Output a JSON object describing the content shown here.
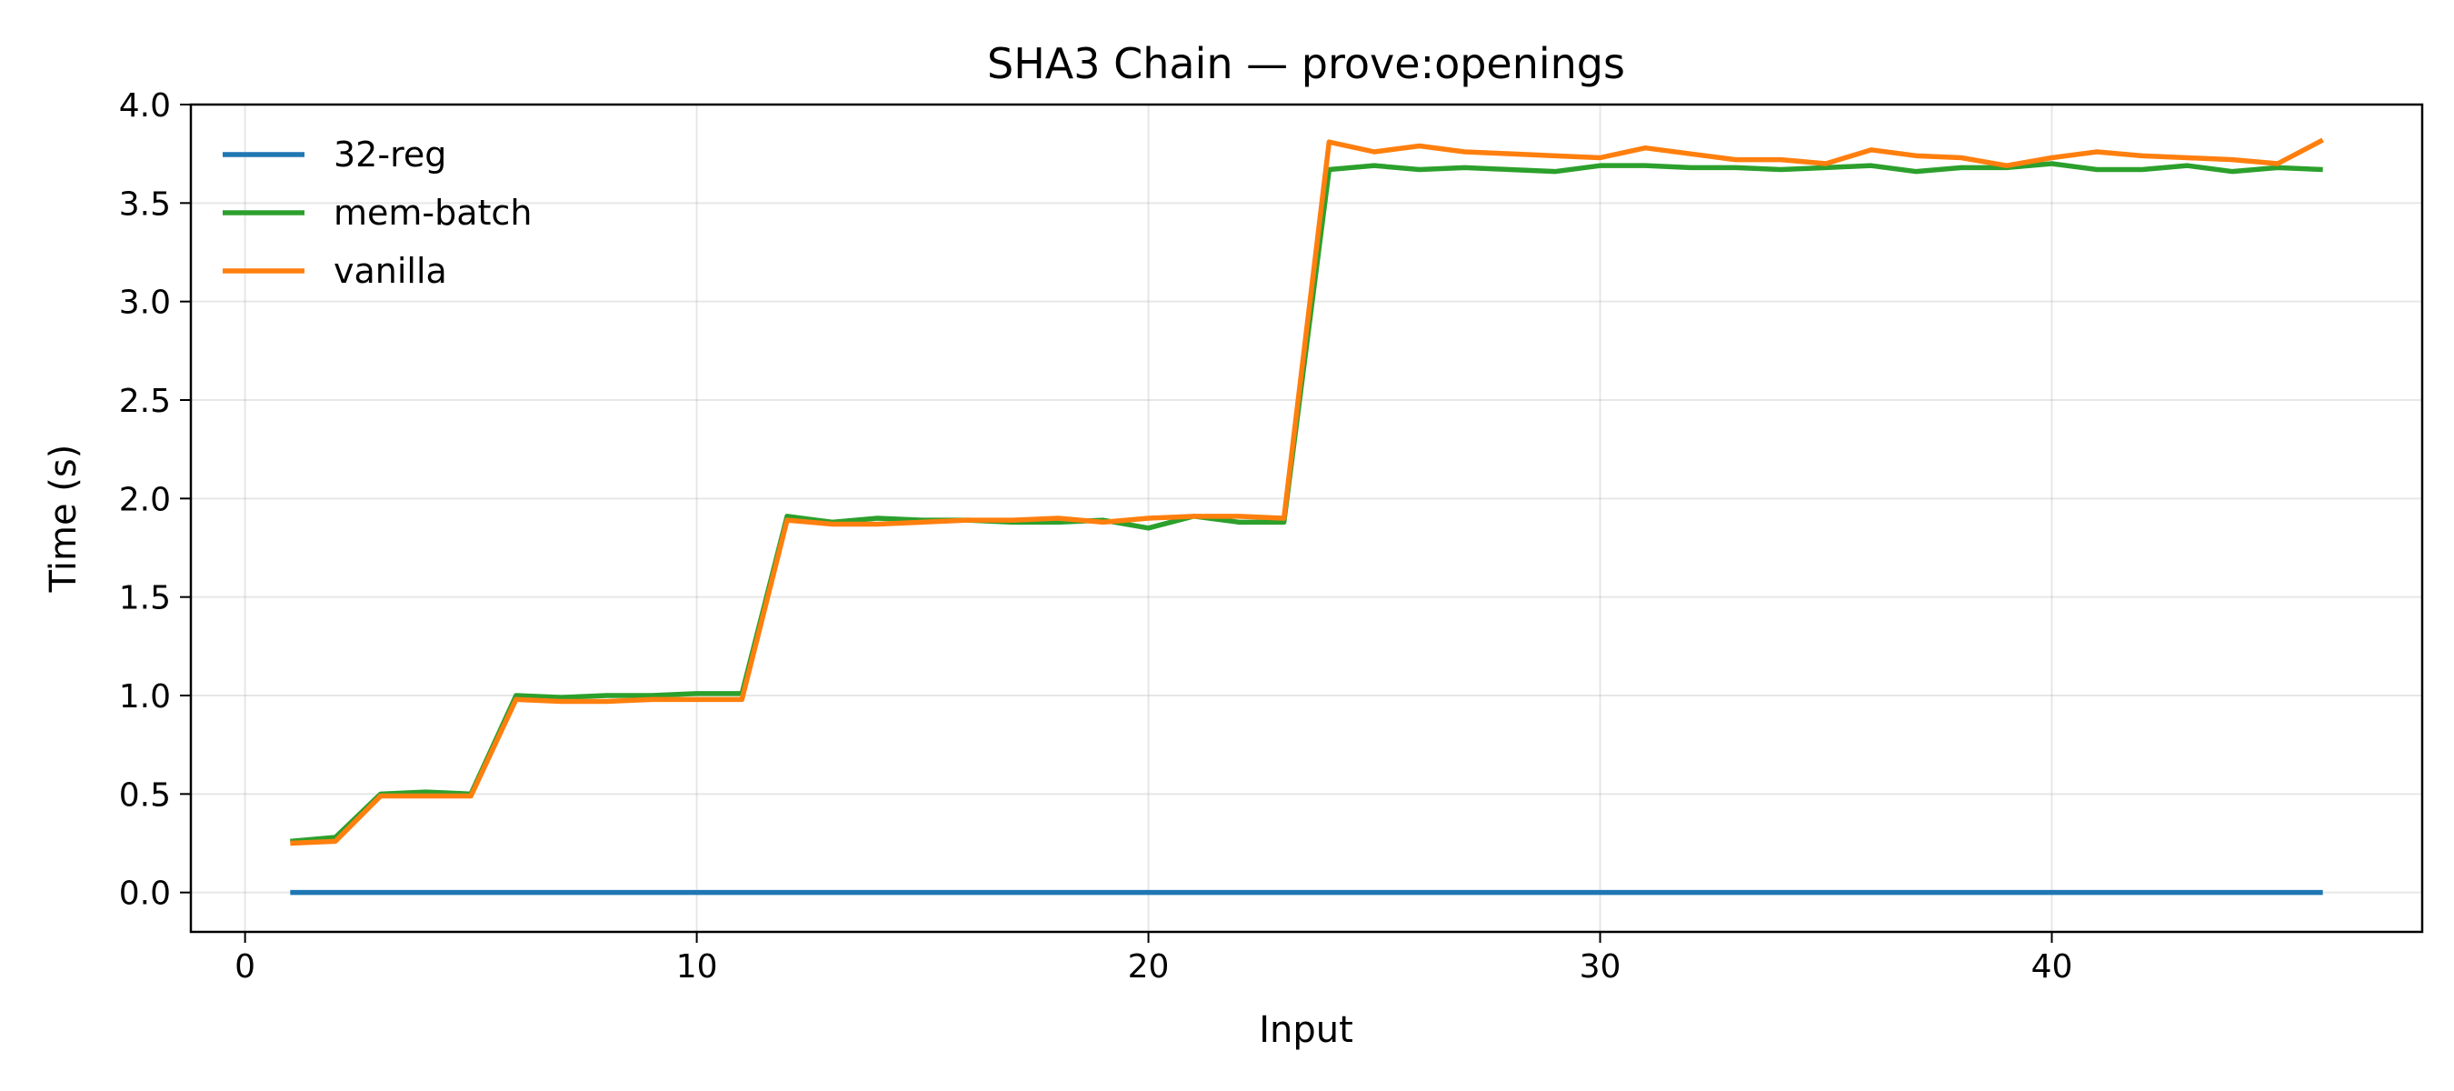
{
  "chart_data": {
    "type": "line",
    "title": "SHA3 Chain — prove:openings",
    "xlabel": "Input",
    "ylabel": "Time (s)",
    "xlim": [
      -1.2,
      48.2
    ],
    "ylim": [
      -0.2,
      4.0
    ],
    "xticks": [
      0,
      10,
      20,
      30,
      40
    ],
    "yticks": [
      0.0,
      0.5,
      1.0,
      1.5,
      2.0,
      2.5,
      3.0,
      3.5,
      4.0
    ],
    "grid": true,
    "legend": "top-left",
    "x": [
      1,
      2,
      3,
      4,
      5,
      6,
      7,
      8,
      9,
      10,
      11,
      12,
      13,
      14,
      15,
      16,
      17,
      18,
      19,
      20,
      21,
      22,
      23,
      24,
      25,
      26,
      27,
      28,
      29,
      30,
      31,
      32,
      33,
      34,
      35,
      36,
      37,
      38,
      39,
      40,
      41,
      42,
      43,
      44,
      45,
      46
    ],
    "series": [
      {
        "name": "32-reg",
        "color": "#1f77b4",
        "values": [
          0,
          0,
          0,
          0,
          0,
          0,
          0,
          0,
          0,
          0,
          0,
          0,
          0,
          0,
          0,
          0,
          0,
          0,
          0,
          0,
          0,
          0,
          0,
          0,
          0,
          0,
          0,
          0,
          0,
          0,
          0,
          0,
          0,
          0,
          0,
          0,
          0,
          0,
          0,
          0,
          0,
          0,
          0,
          0,
          0,
          0
        ]
      },
      {
        "name": "mem-batch",
        "color": "#2ca02c",
        "values": [
          0.26,
          0.28,
          0.5,
          0.51,
          0.5,
          1.0,
          0.99,
          1.0,
          1.0,
          1.01,
          1.01,
          1.91,
          1.88,
          1.9,
          1.89,
          1.89,
          1.88,
          1.88,
          1.89,
          1.85,
          1.91,
          1.88,
          1.88,
          3.67,
          3.69,
          3.67,
          3.68,
          3.67,
          3.66,
          3.69,
          3.69,
          3.68,
          3.68,
          3.67,
          3.68,
          3.69,
          3.66,
          3.68,
          3.68,
          3.7,
          3.67,
          3.67,
          3.69,
          3.66,
          3.68,
          3.67
        ]
      },
      {
        "name": "vanilla",
        "color": "#ff7f0e",
        "values": [
          0.25,
          0.26,
          0.49,
          0.49,
          0.49,
          0.98,
          0.97,
          0.97,
          0.98,
          0.98,
          0.98,
          1.89,
          1.87,
          1.87,
          1.88,
          1.89,
          1.89,
          1.9,
          1.88,
          1.9,
          1.91,
          1.91,
          1.9,
          3.81,
          3.76,
          3.79,
          3.76,
          3.75,
          3.74,
          3.73,
          3.78,
          3.75,
          3.72,
          3.72,
          3.7,
          3.77,
          3.74,
          3.73,
          3.69,
          3.73,
          3.76,
          3.74,
          3.73,
          3.72,
          3.7,
          3.82
        ]
      }
    ]
  }
}
